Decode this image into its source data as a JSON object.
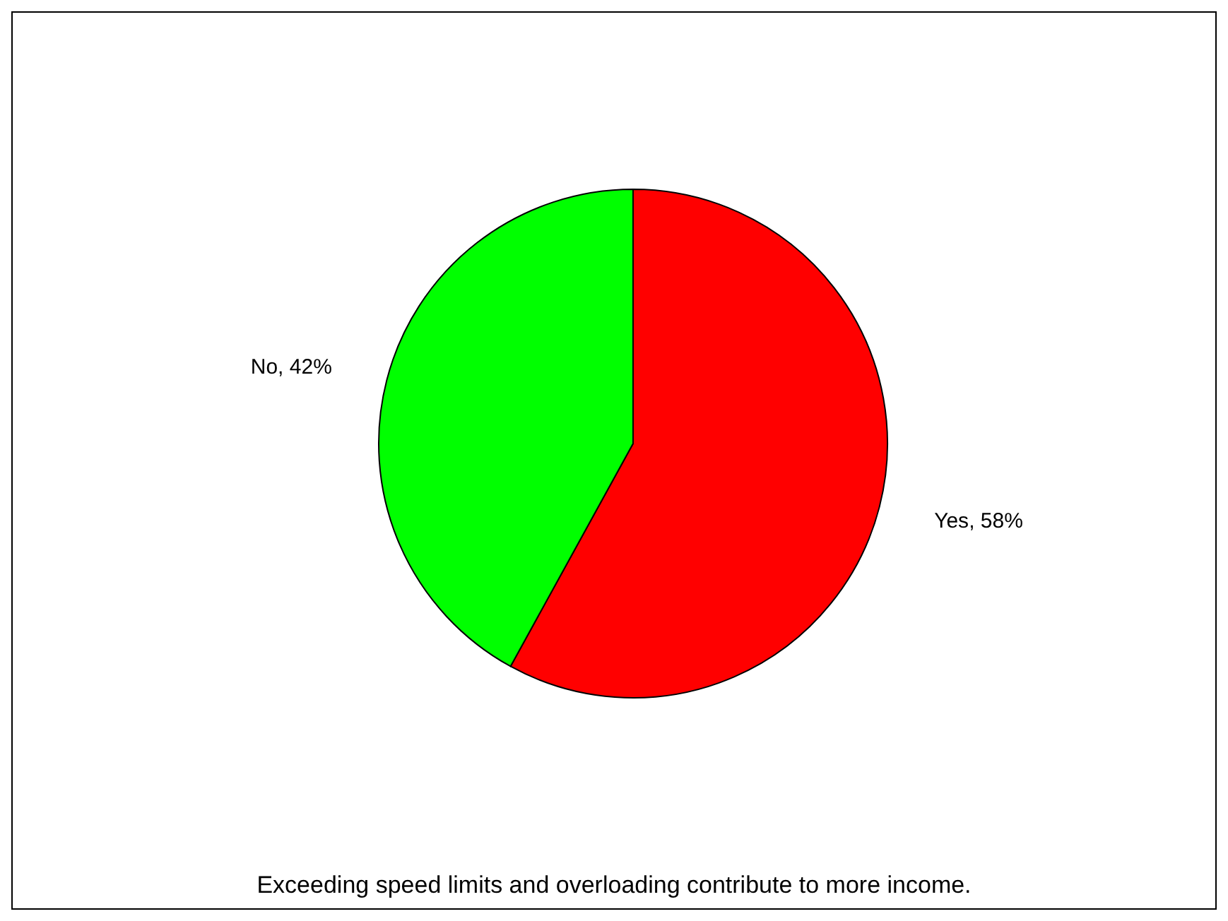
{
  "chart_data": {
    "type": "pie",
    "title": "Exceeding speed limits and overloading contribute to more income.",
    "categories": [
      "Yes",
      "No"
    ],
    "values": [
      58,
      42
    ],
    "colors": [
      "#ff0000",
      "#00ff00"
    ],
    "value_labels": [
      ", 58%",
      ", 42%"
    ]
  }
}
